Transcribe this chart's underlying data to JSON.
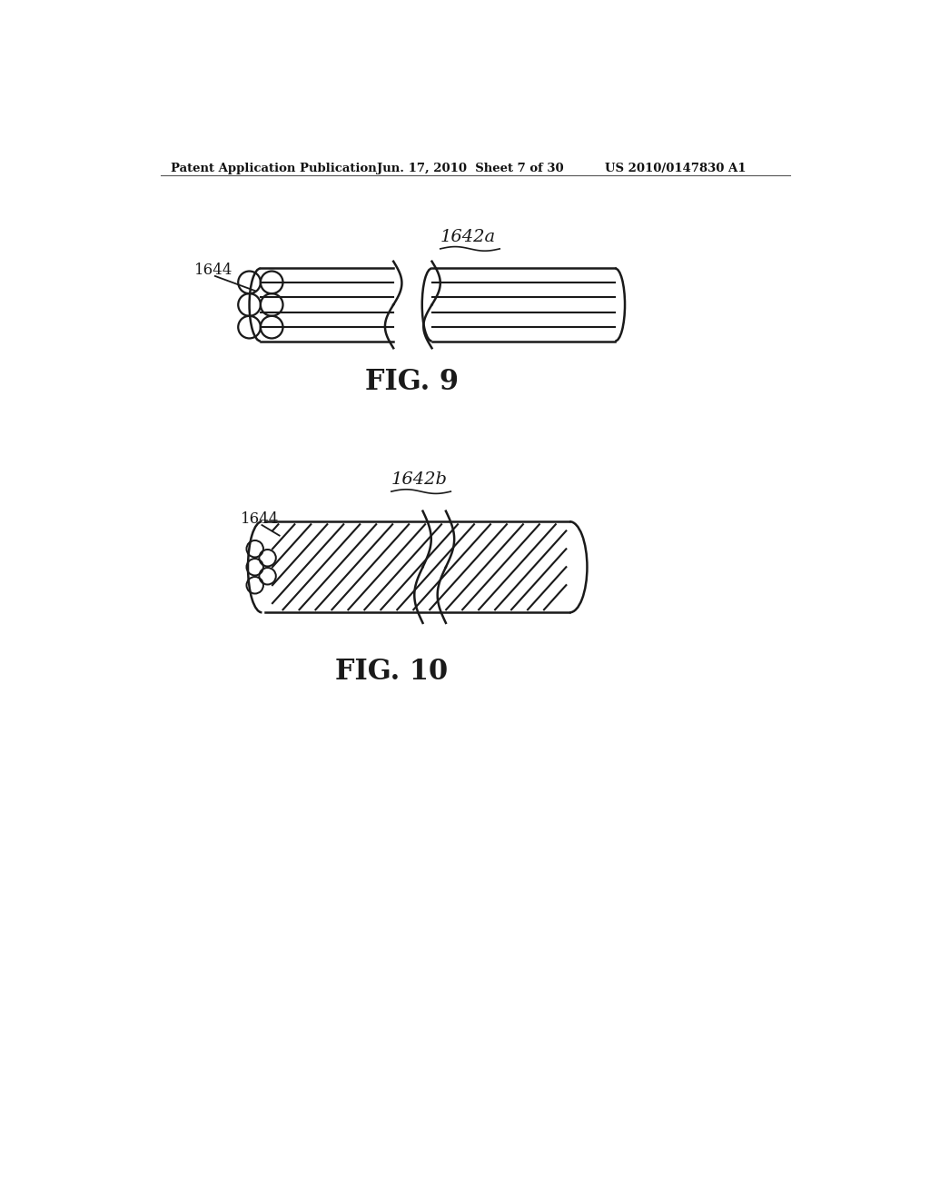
{
  "bg_color": "#ffffff",
  "header_left": "Patent Application Publication",
  "header_mid": "Jun. 17, 2010  Sheet 7 of 30",
  "header_right": "US 2010/0147830 A1",
  "fig9_label": "FIG. 9",
  "fig10_label": "FIG. 10",
  "label_1642a": "1642a",
  "label_1642b": "1642b",
  "label_1644": "1644",
  "line_color": "#1a1a1a"
}
